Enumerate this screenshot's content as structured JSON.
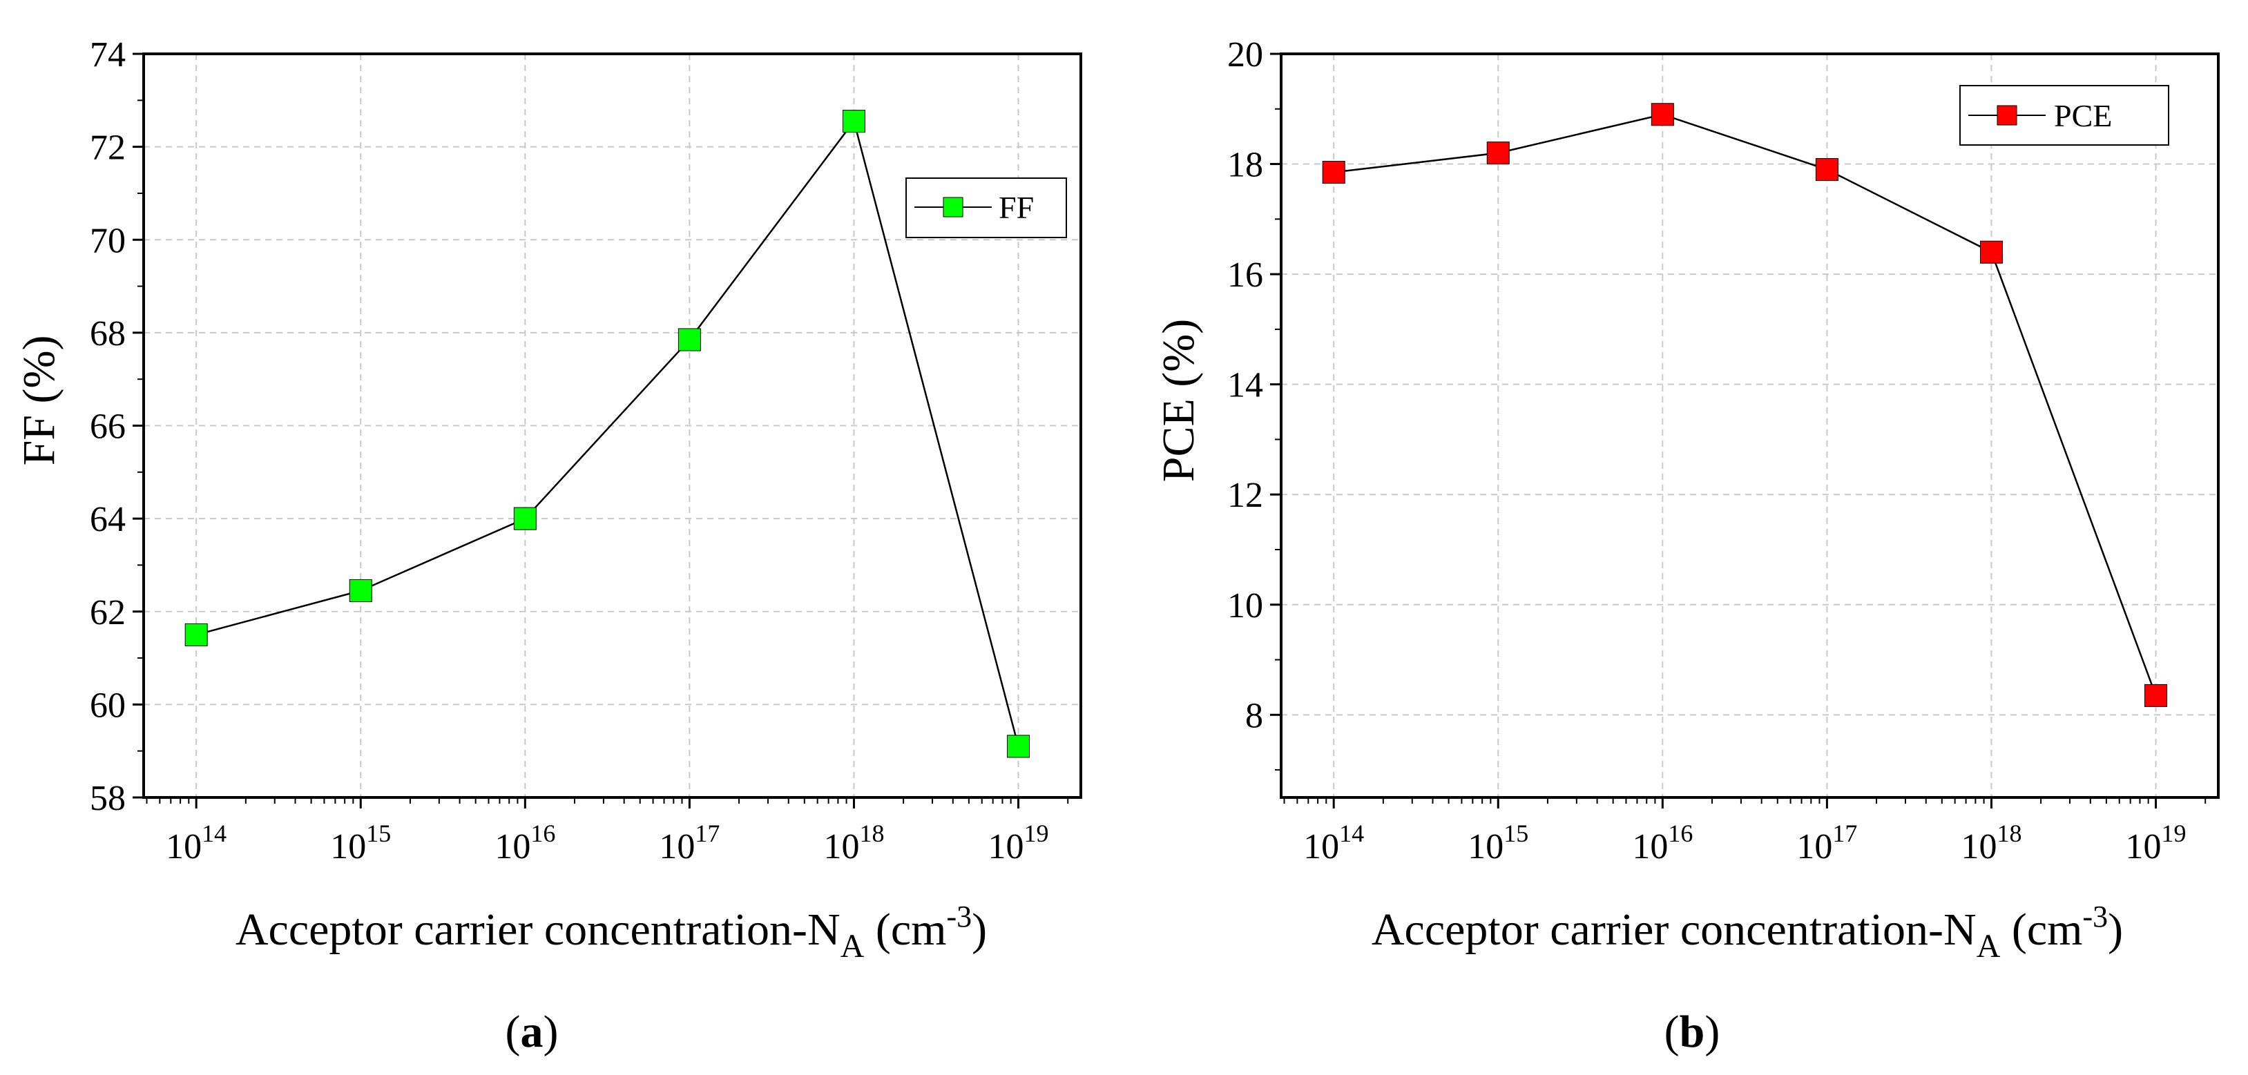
{
  "figure": {
    "panels": [
      {
        "label_open": "(",
        "label_letter": "a",
        "label_close": ")"
      },
      {
        "label_open": "(",
        "label_letter": "b",
        "label_close": ")"
      }
    ]
  },
  "colors": {
    "ff_marker": "#00ff00",
    "pce_marker": "#ff0000",
    "line": "#000000"
  },
  "chart_data": [
    {
      "type": "line",
      "panel": "a",
      "title": "",
      "xlabel": {
        "main": "Acceptor carrier concentration-N",
        "sub": "A",
        "unit_open": " (cm",
        "unit_exp": "-3",
        "unit_close": ")"
      },
      "ylabel": "FF (%)",
      "x_scale": "log",
      "x": [
        "1e14",
        "1e15",
        "1e16",
        "1e17",
        "1e18",
        "1e19"
      ],
      "x_tick_labels": [
        {
          "base": "10",
          "exp": "14"
        },
        {
          "base": "10",
          "exp": "15"
        },
        {
          "base": "10",
          "exp": "16"
        },
        {
          "base": "10",
          "exp": "17"
        },
        {
          "base": "10",
          "exp": "18"
        },
        {
          "base": "10",
          "exp": "19"
        }
      ],
      "xlim_exp": [
        13.68,
        19.38
      ],
      "ylim": [
        58,
        74
      ],
      "y_ticks": [
        58,
        60,
        62,
        64,
        66,
        68,
        70,
        72,
        74
      ],
      "series": [
        {
          "name": "FF",
          "color": "#00ff00",
          "marker": "square",
          "values": [
            61.5,
            62.45,
            64.0,
            67.85,
            72.55,
            59.1
          ]
        }
      ],
      "grid": true,
      "legend": {
        "position": "top-right",
        "entries": [
          "FF"
        ]
      }
    },
    {
      "type": "line",
      "panel": "b",
      "title": "",
      "xlabel": {
        "main": "Acceptor carrier concentration-N",
        "sub": "A",
        "unit_open": " (cm",
        "unit_exp": "-3",
        "unit_close": ")"
      },
      "ylabel": "PCE (%)",
      "x_scale": "log",
      "x": [
        "1e14",
        "1e15",
        "1e16",
        "1e17",
        "1e18",
        "1e19"
      ],
      "x_tick_labels": [
        {
          "base": "10",
          "exp": "14"
        },
        {
          "base": "10",
          "exp": "15"
        },
        {
          "base": "10",
          "exp": "16"
        },
        {
          "base": "10",
          "exp": "17"
        },
        {
          "base": "10",
          "exp": "18"
        },
        {
          "base": "10",
          "exp": "19"
        }
      ],
      "xlim_exp": [
        13.68,
        19.38
      ],
      "ylim": [
        6.5,
        20
      ],
      "y_ticks": [
        8,
        10,
        12,
        14,
        16,
        18,
        20
      ],
      "series": [
        {
          "name": "PCE",
          "color": "#ff0000",
          "marker": "square",
          "values": [
            17.85,
            18.2,
            18.9,
            17.9,
            16.4,
            8.35
          ]
        }
      ],
      "grid": true,
      "legend": {
        "position": "top-right",
        "entries": [
          "PCE"
        ]
      }
    }
  ]
}
